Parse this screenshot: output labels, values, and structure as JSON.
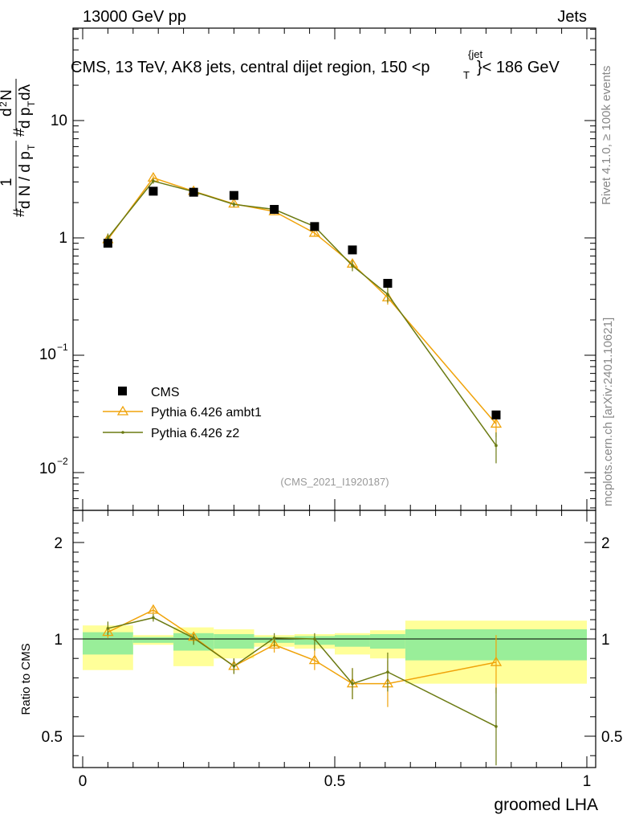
{
  "header": {
    "left": "13000 GeV pp",
    "right": "Jets"
  },
  "side": {
    "rivet": "Rivet 4.1.0, ≥ 100k events",
    "mcplots": "mcplots.cern.ch [arXiv:2401.10621]"
  },
  "chart_data": [
    {
      "type": "line",
      "panel": "main",
      "title": "CMS, 13 TeV, AK8 jets, central dijet region, 150 <p_T^{jet}< 186 GeV",
      "xlabel": "groomed LHA",
      "ylabel": "1 / dN/dp_T · d²N / dp_T dλ",
      "yscale": "log",
      "xlim": [
        -0.02,
        1.0
      ],
      "ylim": [
        0.004,
        70
      ],
      "x": [
        0.05,
        0.14,
        0.22,
        0.3,
        0.38,
        0.46,
        0.535,
        0.605,
        0.82
      ],
      "series": [
        {
          "name": "CMS",
          "marker": "square",
          "color": "#000000",
          "values": [
            0.9,
            2.5,
            2.45,
            2.3,
            1.75,
            1.25,
            0.79,
            0.41,
            0.031
          ]
        },
        {
          "name": "Pythia 6.426 ambt1",
          "marker": "triangle",
          "color": "#f0a30a",
          "values": [
            0.97,
            3.25,
            2.5,
            1.95,
            1.68,
            1.1,
            0.6,
            0.31,
            0.026
          ],
          "errors": [
            0.08,
            0.15,
            0.1,
            0.1,
            0.08,
            0.06,
            0.05,
            0.04,
            0.006
          ]
        },
        {
          "name": "Pythia 6.426 z2",
          "marker": "dot",
          "color": "#6b7a12",
          "values": [
            1.0,
            3.05,
            2.48,
            1.93,
            1.75,
            1.25,
            0.58,
            0.33,
            0.017
          ],
          "errors": [
            0.09,
            0.15,
            0.1,
            0.1,
            0.08,
            0.08,
            0.06,
            0.05,
            0.005
          ]
        }
      ],
      "legend": [
        "CMS",
        "Pythia 6.426 ambt1",
        "Pythia 6.426 z2"
      ],
      "ytick_labels": [
        "10",
        "1",
        "10⁻¹",
        "10⁻²"
      ],
      "watermark": "(CMS_2021_I1920187)"
    },
    {
      "type": "line",
      "panel": "ratio",
      "ylabel": "Ratio to CMS",
      "xlabel": "groomed LHA",
      "xlim": [
        -0.02,
        1.0
      ],
      "ylim": [
        0.35,
        2.3
      ],
      "xticks": [
        "0",
        "0.5",
        "1"
      ],
      "yticks": [
        "0.5",
        "1",
        "2"
      ],
      "bands": [
        {
          "x0": 0.0,
          "x1": 0.1,
          "inner": [
            0.92,
            1.07
          ],
          "outer": [
            0.84,
            1.14
          ]
        },
        {
          "x0": 0.1,
          "x1": 0.18,
          "inner": [
            0.98,
            1.02
          ],
          "outer": [
            0.97,
            1.04
          ]
        },
        {
          "x0": 0.18,
          "x1": 0.26,
          "inner": [
            0.94,
            1.06
          ],
          "outer": [
            0.86,
            1.12
          ]
        },
        {
          "x0": 0.26,
          "x1": 0.34,
          "inner": [
            0.95,
            1.05
          ],
          "outer": [
            0.9,
            1.1
          ]
        },
        {
          "x0": 0.34,
          "x1": 0.42,
          "inner": [
            0.98,
            1.02
          ],
          "outer": [
            0.96,
            1.04
          ]
        },
        {
          "x0": 0.42,
          "x1": 0.5,
          "inner": [
            0.97,
            1.03
          ],
          "outer": [
            0.95,
            1.05
          ]
        },
        {
          "x0": 0.5,
          "x1": 0.57,
          "inner": [
            0.96,
            1.04
          ],
          "outer": [
            0.92,
            1.06
          ]
        },
        {
          "x0": 0.57,
          "x1": 0.64,
          "inner": [
            0.95,
            1.05
          ],
          "outer": [
            0.9,
            1.09
          ]
        },
        {
          "x0": 0.64,
          "x1": 1.0,
          "inner": [
            0.89,
            1.1
          ],
          "outer": [
            0.77,
            1.19
          ]
        }
      ],
      "series": [
        {
          "name": "Pythia 6.426 ambt1",
          "color": "#f0a30a",
          "marker": "triangle",
          "values": [
            1.07,
            1.3,
            1.02,
            0.86,
            0.97,
            0.89,
            0.77,
            0.77,
            0.88
          ],
          "errors": [
            0.06,
            0.03,
            0.04,
            0.04,
            0.04,
            0.05,
            0.08,
            0.12,
            0.16
          ]
        },
        {
          "name": "Pythia 6.426 z2",
          "color": "#6b7a12",
          "marker": "dot",
          "values": [
            1.11,
            1.22,
            1.01,
            0.86,
            1.01,
            1.0,
            0.77,
            0.83,
            0.55
          ],
          "errors": [
            0.07,
            0.04,
            0.04,
            0.04,
            0.05,
            0.06,
            0.08,
            0.1,
            0.2
          ]
        }
      ]
    }
  ]
}
